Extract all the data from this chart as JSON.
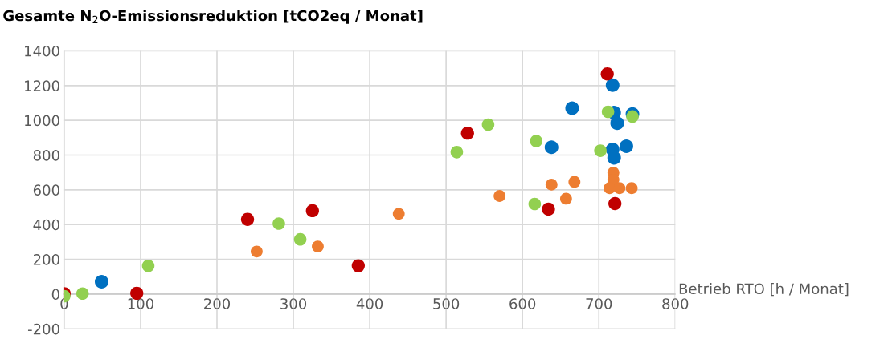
{
  "chart_data": {
    "type": "scatter",
    "title": "Gesamte N$_{2}$O-Emissionsreduktion [tCO2eq / Monat]",
    "xlabel": "Betrieb RTO [h / Monat]",
    "xlim": [
      0,
      800
    ],
    "xticks": [
      0,
      100,
      200,
      300,
      400,
      500,
      600,
      700,
      800
    ],
    "ylim": [
      -200,
      1400
    ],
    "yticks": [
      -200,
      0,
      200,
      400,
      600,
      800,
      1000,
      1200,
      1400
    ],
    "grid": true,
    "marker": "circle",
    "legend": false,
    "series": [
      {
        "color": "#0070c0",
        "x": [
          49,
          665,
          718,
          720,
          744,
          724,
          638,
          718,
          736,
          720
        ],
        "values": [
          71,
          1070,
          1203,
          1044,
          1037,
          984,
          845,
          832,
          851,
          784
        ]
      },
      {
        "color": "#c00000",
        "x": [
          0,
          95,
          240,
          325,
          385,
          711,
          528,
          634,
          721
        ],
        "values": [
          3,
          5,
          430,
          480,
          163,
          1267,
          926,
          489,
          521
        ]
      },
      {
        "color": "#92d050",
        "x": [
          0,
          24,
          110,
          281,
          309,
          514,
          555,
          618,
          616,
          702,
          712,
          744
        ],
        "values": [
          -12,
          3,
          162,
          406,
          315,
          817,
          975,
          881,
          519,
          825,
          1049,
          1022
        ]
      },
      {
        "color": "#ed7d31",
        "x": [
          252,
          332,
          438,
          570,
          638,
          668,
          657,
          719,
          719,
          714,
          727,
          743
        ],
        "values": [
          245,
          274,
          462,
          565,
          630,
          646,
          549,
          699,
          658,
          610,
          610,
          610
        ]
      }
    ]
  }
}
